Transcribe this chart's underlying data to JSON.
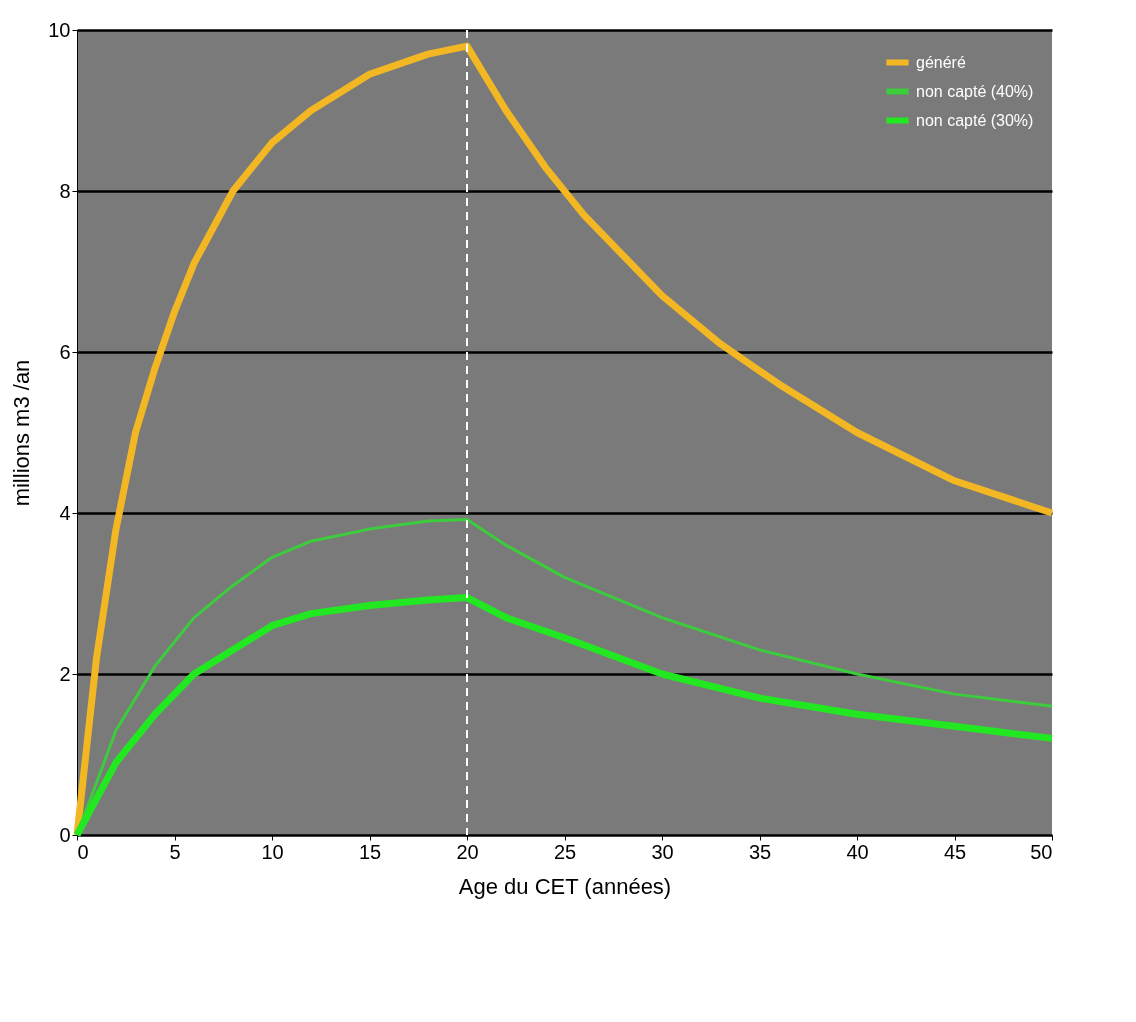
{
  "chart_data": {
    "type": "line",
    "xlabel": "Age du CET (années)",
    "ylabel": "millions m3 /an",
    "xlim": [
      0,
      50
    ],
    "xticks": [
      0,
      5,
      10,
      15,
      20,
      25,
      30,
      35,
      40,
      45,
      50
    ],
    "ylim": [
      0,
      10
    ],
    "yticks": [
      0,
      2,
      4,
      6,
      8,
      10
    ],
    "grid": "y",
    "legend": "top right",
    "line_style": "solid",
    "marker": "none",
    "series": [
      {
        "name": "généré",
        "color": "#f2b723",
        "x": [
          0,
          1,
          2,
          3,
          4,
          5,
          6,
          8,
          10,
          12,
          15,
          18,
          20,
          22,
          24,
          26,
          28,
          30,
          33,
          36,
          40,
          45,
          50
        ],
        "values": [
          0,
          2.2,
          3.8,
          5.0,
          5.8,
          6.5,
          7.1,
          8.0,
          8.6,
          9.0,
          9.45,
          9.7,
          9.8,
          9.0,
          8.3,
          7.7,
          7.2,
          6.7,
          6.1,
          5.6,
          5.0,
          4.4,
          4.0
        ]
      },
      {
        "name": "non capté (40%)",
        "color": "#3ccc3c",
        "x": [
          0,
          2,
          4,
          6,
          8,
          10,
          12,
          15,
          18,
          20,
          22,
          25,
          30,
          35,
          40,
          45,
          50
        ],
        "values": [
          0,
          1.3,
          2.1,
          2.7,
          3.1,
          3.45,
          3.65,
          3.8,
          3.9,
          3.92,
          3.6,
          3.2,
          2.7,
          2.3,
          2.0,
          1.75,
          1.6
        ]
      },
      {
        "name": "non capté (30%)",
        "color": "#22e822",
        "x": [
          0,
          2,
          4,
          6,
          8,
          10,
          12,
          15,
          18,
          20,
          22,
          25,
          30,
          35,
          40,
          45,
          50
        ],
        "values": [
          0,
          0.9,
          1.5,
          2.0,
          2.3,
          2.6,
          2.75,
          2.85,
          2.92,
          2.95,
          2.7,
          2.45,
          2.0,
          1.7,
          1.5,
          1.35,
          1.2
        ]
      }
    ],
    "ref_lines": [
      {
        "axis": "x",
        "value": 20,
        "color": "#ffffff",
        "line_style": "dashed"
      }
    ]
  }
}
